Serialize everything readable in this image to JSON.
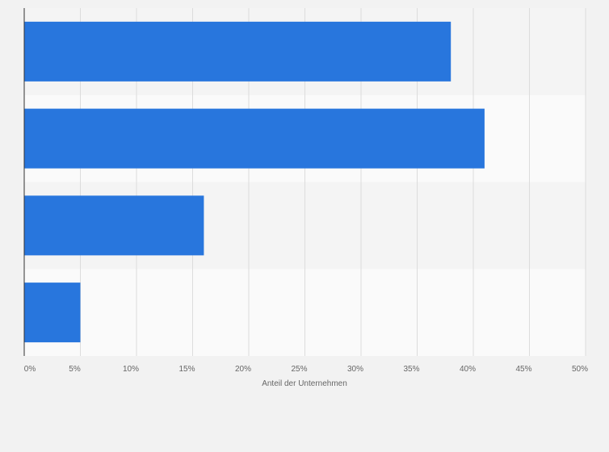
{
  "chart_data": {
    "type": "bar",
    "orientation": "horizontal",
    "categories": [
      "",
      "",
      "",
      ""
    ],
    "values": [
      38,
      41,
      16,
      5
    ],
    "xlabel": "Anteil der Unternehmen",
    "ylabel": "",
    "xlim": [
      0,
      50
    ],
    "x_ticks": [
      "0%",
      "5%",
      "10%",
      "15%",
      "20%",
      "25%",
      "30%",
      "35%",
      "40%",
      "45%",
      "50%"
    ],
    "grid": "vertical",
    "legend": "none",
    "colors": {
      "bar": "#2876dd",
      "band_dark": "#f4f4f4",
      "band_light": "#fafafa",
      "grid": "#dcdcdc",
      "axis": "#333333",
      "page": "#f2f2f2"
    }
  }
}
